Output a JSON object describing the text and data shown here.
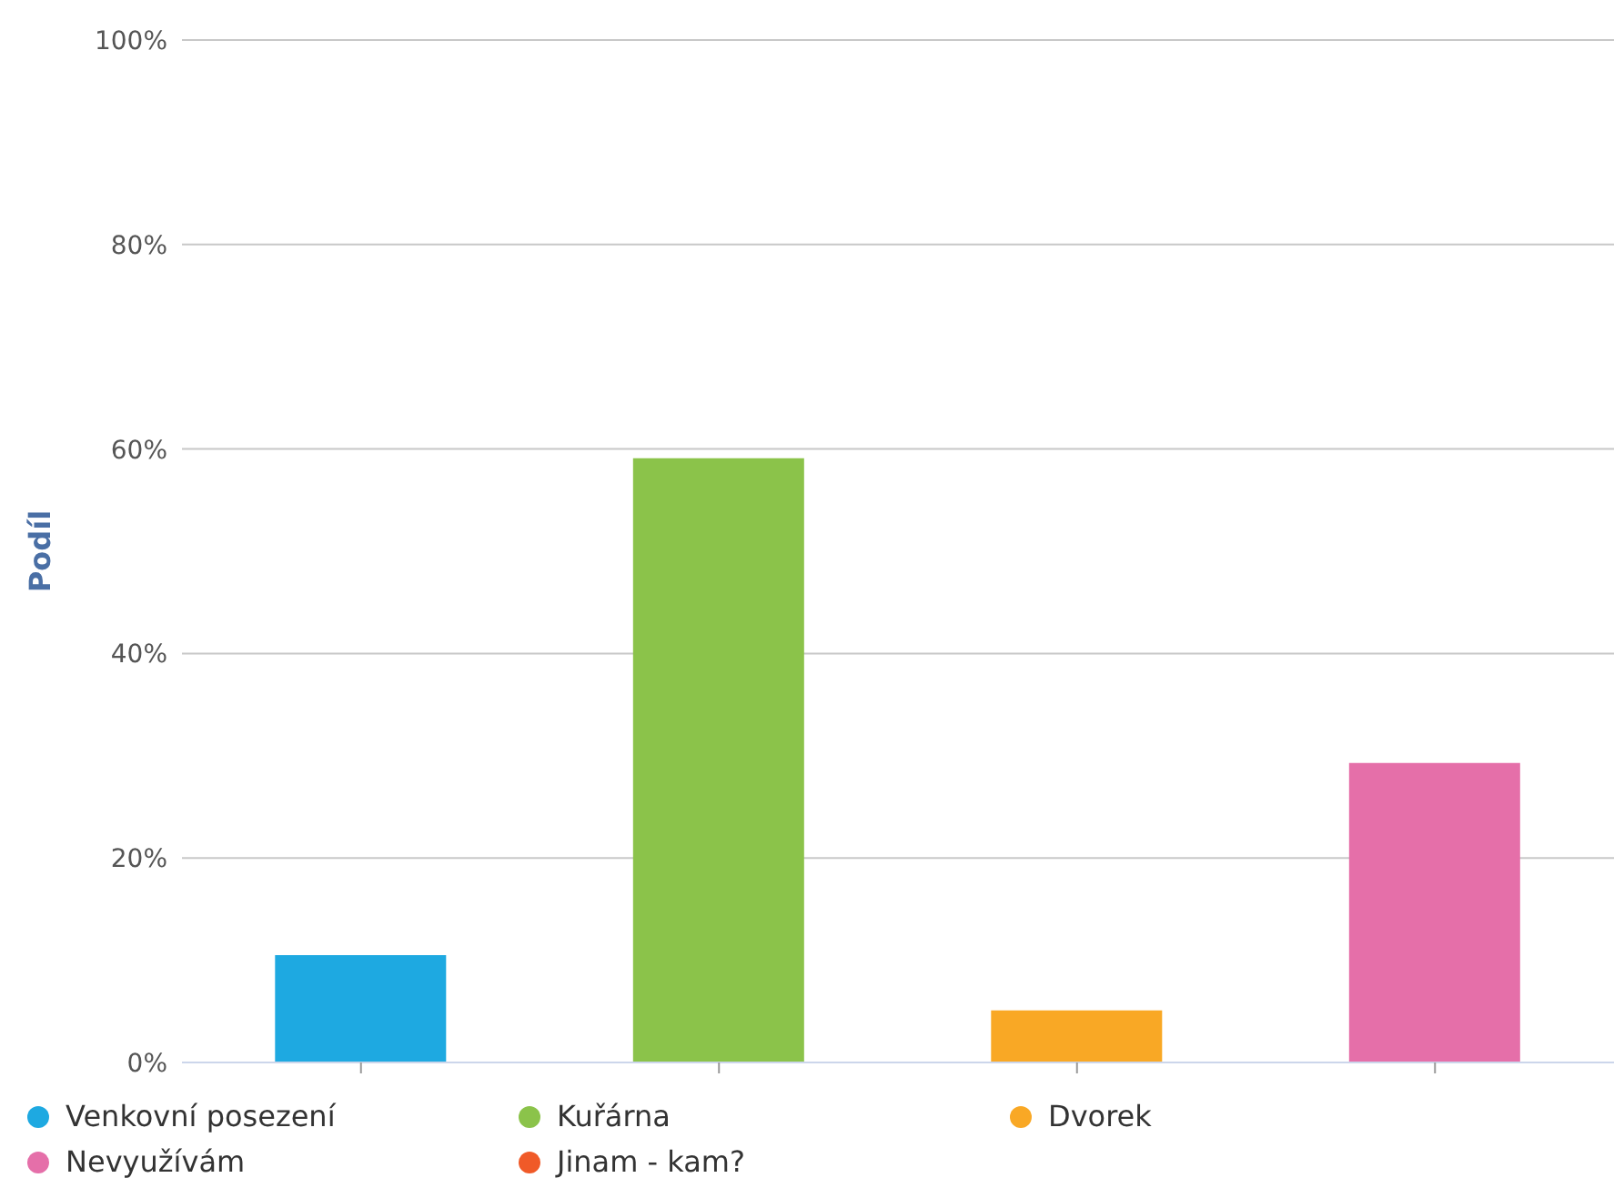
{
  "chart_data": {
    "type": "bar",
    "ylabel": "Podíl",
    "categories": [
      null,
      null,
      null,
      null
    ],
    "series": [
      {
        "name": "Venkovní posezení",
        "color": "#1ea9e1",
        "values": [
          10.5,
          null,
          null,
          null
        ]
      },
      {
        "name": "Kuřárna",
        "color": "#8bc34a",
        "values": [
          null,
          59.1,
          null,
          null
        ]
      },
      {
        "name": "Dvorek",
        "color": "#f9a825",
        "values": [
          null,
          null,
          5.1,
          null
        ]
      },
      {
        "name": "Nevyužívám",
        "color": "#e56fa9",
        "values": [
          null,
          null,
          null,
          29.3
        ]
      },
      {
        "name": "Jinam - kam?",
        "color": "#f05a28",
        "values": [
          null,
          null,
          null,
          null
        ]
      }
    ],
    "stacked": true,
    "ylim": [
      0,
      100
    ],
    "yticks": [
      {
        "value": 0,
        "label": "0%"
      },
      {
        "value": 20,
        "label": "20%"
      },
      {
        "value": 40,
        "label": "40%"
      },
      {
        "value": 60,
        "label": "60%"
      },
      {
        "value": 80,
        "label": "80%"
      },
      {
        "value": 100,
        "label": "100%"
      }
    ],
    "grid": "y",
    "legend": "bottom",
    "tick_labels": "y"
  }
}
